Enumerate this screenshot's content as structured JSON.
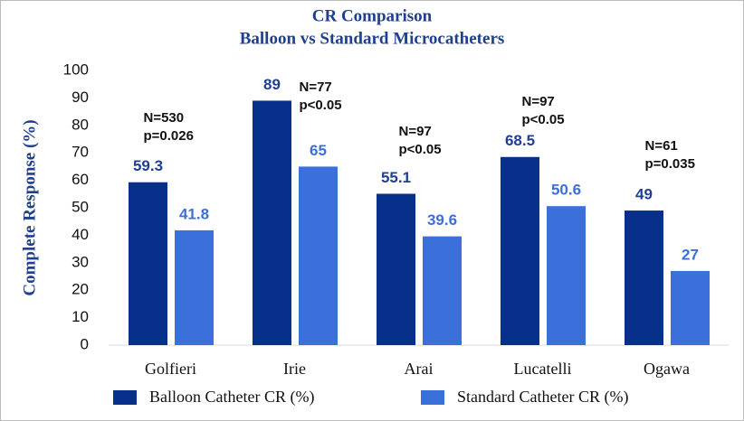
{
  "chart_data": {
    "type": "bar",
    "title": "CR Comparison",
    "subtitle": "Balloon vs Standard Microcatheters",
    "y_label": "Complete Response  (%)",
    "categories": [
      "Golfieri",
      "Irie",
      "Arai",
      "Lucatelli",
      "Ogawa"
    ],
    "series": [
      {
        "name": "Balloon Catheter CR (%)",
        "color": "#07308a",
        "label_color": "#1e3f94",
        "values": [
          59.3,
          89,
          55.1,
          68.5,
          49
        ]
      },
      {
        "name": "Standard Catheter CR (%)",
        "color": "#3b6fd9",
        "label_color": "#3b6fd9",
        "values": [
          41.8,
          65,
          39.6,
          50.6,
          27
        ]
      }
    ],
    "annotations": [
      [
        "N=530",
        "p=0.026"
      ],
      [
        "N=77",
        "p<0.05"
      ],
      [
        "N=97",
        "p<0.05"
      ],
      [
        "N=97",
        "p<0.05"
      ],
      [
        "N=61",
        "p=0.035"
      ]
    ],
    "ylim": [
      0,
      100
    ],
    "yticks": [
      0,
      10,
      20,
      30,
      40,
      50,
      60,
      70,
      80,
      90,
      100
    ],
    "grid": false,
    "legend": "bottom"
  }
}
